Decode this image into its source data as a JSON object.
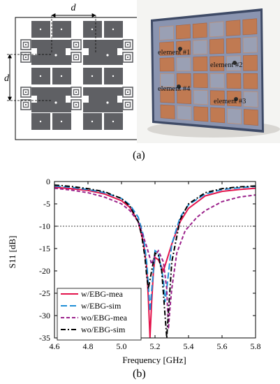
{
  "schematic": {
    "dim_label_horizontal": "d",
    "dim_label_vertical": "d"
  },
  "photo": {
    "element_labels": [
      "element #1",
      "element #2",
      "element #4",
      "element #3"
    ]
  },
  "figure_labels": {
    "a": "(a)",
    "b": "(b)"
  },
  "colors": {
    "board": "#6e6f73",
    "patch": "#5f6064",
    "copper": "#c07a52",
    "red": "#e3134b",
    "blue": "#1f8fd6",
    "purple": "#9a1f8a",
    "black": "#000000"
  },
  "chart_data": {
    "type": "line",
    "xlabel": "Frequency [GHz]",
    "ylabel": "S11 [dB]",
    "xlim": [
      4.6,
      5.8
    ],
    "ylim": [
      -35,
      0
    ],
    "xticks": [
      "4.6",
      "4.8",
      "5.0",
      "5.2",
      "5.4",
      "5.6",
      "5.8"
    ],
    "yticks": [
      "0",
      "-5",
      "-10",
      "-15",
      "-20",
      "-25",
      "-30",
      "-35"
    ],
    "reference_line_y": -10,
    "legend_position": "bottom-left",
    "series": [
      {
        "name": "w/EBG-mea",
        "style": "solid",
        "color": "#e3134b",
        "x": [
          4.6,
          4.7,
          4.8,
          4.9,
          5.0,
          5.05,
          5.1,
          5.13,
          5.15,
          5.16,
          5.17,
          5.18,
          5.19,
          5.2,
          5.22,
          5.25,
          5.3,
          5.35,
          5.4,
          5.5,
          5.6,
          5.7,
          5.8
        ],
        "y": [
          -1.3,
          -1.6,
          -2.0,
          -2.8,
          -4.3,
          -5.8,
          -9.0,
          -13.5,
          -19.0,
          -26.0,
          -35.0,
          -27.0,
          -20.5,
          -17.0,
          -17.5,
          -20.0,
          -14.0,
          -9.0,
          -6.0,
          -3.2,
          -2.2,
          -1.8,
          -1.5
        ]
      },
      {
        "name": "w/EBG-sim",
        "style": "dashed",
        "color": "#1f8fd6",
        "x": [
          4.6,
          4.7,
          4.8,
          4.9,
          5.0,
          5.05,
          5.1,
          5.13,
          5.15,
          5.16,
          5.17,
          5.2,
          5.22,
          5.25,
          5.26,
          5.27,
          5.3,
          5.35,
          5.4,
          5.5,
          5.6,
          5.7,
          5.8
        ],
        "y": [
          -1.0,
          -1.3,
          -1.8,
          -2.5,
          -3.8,
          -5.2,
          -8.0,
          -12.0,
          -18.0,
          -23.0,
          -29.0,
          -15.5,
          -16.0,
          -22.0,
          -27.0,
          -24.0,
          -14.0,
          -8.0,
          -5.2,
          -2.8,
          -1.8,
          -1.4,
          -1.1
        ]
      },
      {
        "name": "wo/EBG-mea",
        "style": "short-dashed",
        "color": "#9a1f8a",
        "x": [
          4.6,
          4.7,
          4.8,
          4.9,
          5.0,
          5.05,
          5.1,
          5.15,
          5.18,
          5.2,
          5.22,
          5.25,
          5.27,
          5.28,
          5.29,
          5.3,
          5.33,
          5.38,
          5.45,
          5.5,
          5.6,
          5.7,
          5.8
        ],
        "y": [
          -1.5,
          -1.9,
          -2.5,
          -3.5,
          -5.0,
          -6.5,
          -9.0,
          -14.5,
          -18.5,
          -16.5,
          -15.5,
          -18.0,
          -24.0,
          -33.0,
          -28.0,
          -24.0,
          -16.0,
          -11.0,
          -8.0,
          -6.5,
          -4.5,
          -3.5,
          -3.0
        ]
      },
      {
        "name": "wo/EBG-sim",
        "style": "dash-dot",
        "color": "#000000",
        "x": [
          4.6,
          4.7,
          4.8,
          4.9,
          5.0,
          5.05,
          5.1,
          5.12,
          5.14,
          5.15,
          5.16,
          5.18,
          5.2,
          5.22,
          5.24,
          5.26,
          5.27,
          5.3,
          5.35,
          5.4,
          5.5,
          5.6,
          5.7,
          5.8
        ],
        "y": [
          -0.8,
          -1.1,
          -1.6,
          -2.3,
          -3.8,
          -5.5,
          -9.0,
          -12.0,
          -17.0,
          -21.0,
          -24.0,
          -20.0,
          -16.0,
          -16.5,
          -20.0,
          -30.0,
          -35.0,
          -18.0,
          -8.5,
          -5.0,
          -2.5,
          -1.6,
          -1.2,
          -1.0
        ]
      }
    ]
  }
}
